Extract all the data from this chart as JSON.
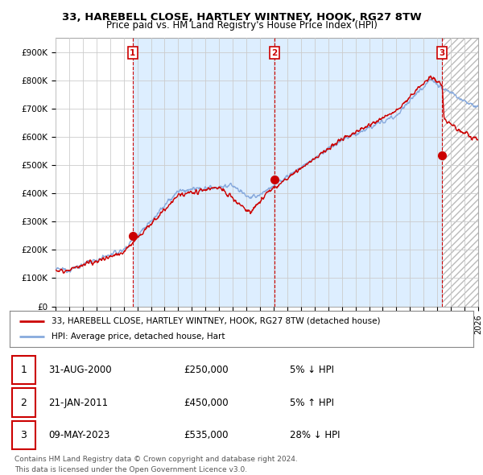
{
  "title_line1": "33, HAREBELL CLOSE, HARTLEY WINTNEY, HOOK, RG27 8TW",
  "title_line2": "Price paid vs. HM Land Registry's House Price Index (HPI)",
  "xlim_start": 1995.0,
  "xlim_end": 2026.0,
  "ylim_min": 0,
  "ylim_max": 950000,
  "yticks": [
    0,
    100000,
    200000,
    300000,
    400000,
    500000,
    600000,
    700000,
    800000,
    900000
  ],
  "ytick_labels": [
    "£0",
    "£100K",
    "£200K",
    "£300K",
    "£400K",
    "£500K",
    "£600K",
    "£700K",
    "£800K",
    "£900K"
  ],
  "xticks": [
    1995,
    1996,
    1997,
    1998,
    1999,
    2000,
    2001,
    2002,
    2003,
    2004,
    2005,
    2006,
    2007,
    2008,
    2009,
    2010,
    2011,
    2012,
    2013,
    2014,
    2015,
    2016,
    2017,
    2018,
    2019,
    2020,
    2021,
    2022,
    2023,
    2024,
    2025,
    2026
  ],
  "sale_dates": [
    2000.664,
    2011.054,
    2023.355
  ],
  "sale_prices": [
    250000,
    450000,
    535000
  ],
  "hpi_color": "#88aadd",
  "sale_color": "#cc0000",
  "vline_color": "#cc0000",
  "grid_color": "#cccccc",
  "bg_color": "#ffffff",
  "shade_color": "#ddeeff",
  "hatch_color": "#cccccc",
  "legend_line1": "33, HAREBELL CLOSE, HARTLEY WINTNEY, HOOK, RG27 8TW (detached house)",
  "legend_line2": "HPI: Average price, detached house, Hart",
  "table_rows": [
    {
      "num": 1,
      "date": "31-AUG-2000",
      "price": "£250,000",
      "hpi": "5% ↓ HPI"
    },
    {
      "num": 2,
      "date": "21-JAN-2011",
      "price": "£450,000",
      "hpi": "5% ↑ HPI"
    },
    {
      "num": 3,
      "date": "09-MAY-2023",
      "price": "£535,000",
      "hpi": "28% ↓ HPI"
    }
  ],
  "footnote1": "Contains HM Land Registry data © Crown copyright and database right 2024.",
  "footnote2": "This data is licensed under the Open Government Licence v3.0."
}
